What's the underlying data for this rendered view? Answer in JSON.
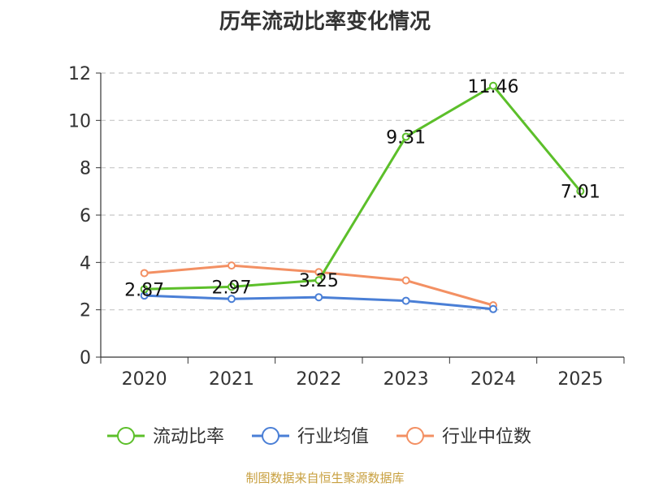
{
  "chart_data": {
    "type": "line",
    "title": "历年流动比率变化情况",
    "categories": [
      "2020",
      "2021",
      "2022",
      "2023",
      "2024",
      "2025"
    ],
    "ylim": [
      0,
      12
    ],
    "yticks": [
      "0",
      "2",
      "4",
      "6",
      "8",
      "10",
      "12"
    ],
    "grid": true,
    "legend_position": "bottom",
    "series": [
      {
        "name": "流动比率",
        "color": "#5cbf2a",
        "values": [
          2.87,
          2.97,
          3.25,
          9.31,
          11.46,
          7.01
        ],
        "labels": [
          "2.87",
          "2.97",
          "3.25",
          "9.31",
          "11.46",
          "7.01"
        ]
      },
      {
        "name": "行业均值",
        "color": "#4a7fd6",
        "values": [
          2.6,
          2.46,
          2.53,
          2.38,
          2.03,
          null
        ]
      },
      {
        "name": "行业中位数",
        "color": "#f39063",
        "values": [
          3.55,
          3.87,
          3.59,
          3.24,
          2.19,
          null
        ]
      }
    ]
  },
  "footer": {
    "source": "制图数据来自恒生聚源数据库"
  }
}
